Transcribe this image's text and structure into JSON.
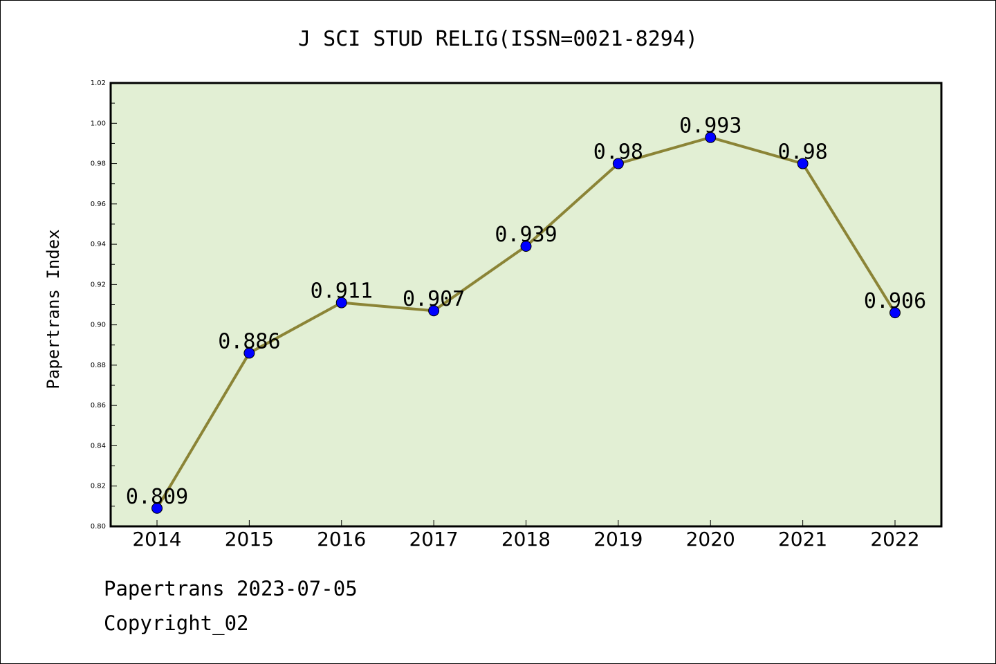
{
  "chart_data": {
    "type": "line",
    "title": "J SCI STUD RELIG(ISSN=0021-8294)",
    "xlabel": "",
    "ylabel": "Papertrans Index",
    "categories": [
      "2014",
      "2015",
      "2016",
      "2017",
      "2018",
      "2019",
      "2020",
      "2021",
      "2022"
    ],
    "series": [
      {
        "values": [
          0.809,
          0.886,
          0.911,
          0.907,
          0.939,
          0.98,
          0.993,
          0.98,
          0.906
        ],
        "labels": [
          "0.809",
          "0.886",
          "0.911",
          "0.907",
          "0.939",
          "0.98",
          "0.993",
          "0.98",
          "0.906"
        ]
      }
    ],
    "ylim": [
      0.8,
      1.02
    ],
    "yticks": [
      "0.80",
      "0.82",
      "0.84",
      "0.86",
      "0.88",
      "0.90",
      "0.92",
      "0.94",
      "0.96",
      "0.98",
      "1.00",
      "1.02"
    ],
    "grid": false,
    "colors": {
      "plot_background": "#e2efd4",
      "line": "#8b8436",
      "marker": "#0000ff"
    }
  },
  "footer": {
    "date_line": "Papertrans 2023-07-05",
    "copyright": "Copyright_02"
  }
}
